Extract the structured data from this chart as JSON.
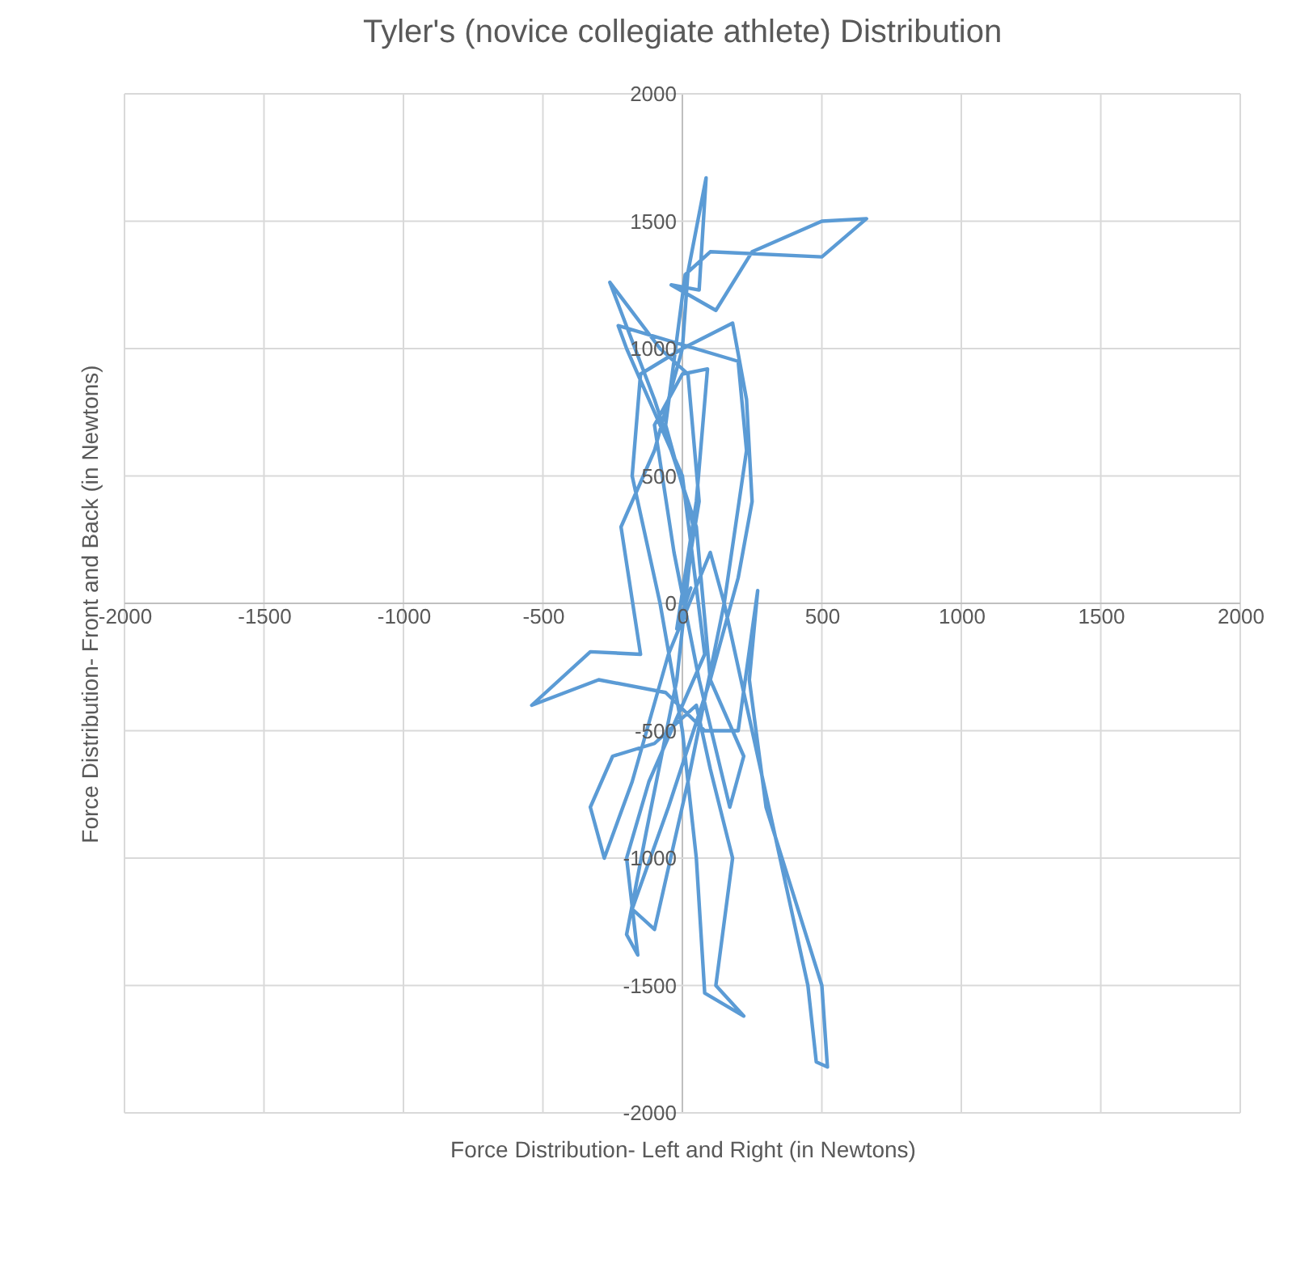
{
  "chart_data": {
    "type": "line",
    "title": "Tyler's (novice collegiate athlete) Distribution",
    "xlabel": "Force Distribution- Left and Right (in Newtons)",
    "ylabel": "Force Distribution- Front and Back (in Newtons)",
    "xlim": [
      -2000,
      2000
    ],
    "ylim": [
      -2000,
      2000
    ],
    "xticks": [
      -2000,
      -1500,
      -1000,
      -500,
      0,
      500,
      1000,
      1500,
      2000
    ],
    "yticks": [
      -2000,
      -1500,
      -1000,
      -500,
      0,
      500,
      1000,
      1500,
      2000
    ],
    "grid": true,
    "series": [
      {
        "color": "#5b9bd5",
        "x": [
          0,
          60,
          20,
          -80,
          -260,
          -100,
          50,
          100,
          -50,
          -180,
          -100,
          20,
          150,
          230,
          200,
          -230,
          -200,
          0,
          80,
          -120,
          -200,
          -160,
          -200,
          -130,
          -20,
          40,
          -60,
          10,
          100,
          500,
          660,
          500,
          250,
          120,
          -40,
          60,
          85,
          20,
          0,
          -100,
          -220,
          -150,
          -330,
          -540,
          -300,
          -60,
          80,
          200,
          270,
          240,
          300,
          500,
          520,
          480,
          450,
          150,
          100,
          -50,
          -180,
          -280,
          -330,
          -250,
          -100,
          50,
          100,
          180,
          120,
          220,
          80,
          50,
          0,
          -80,
          -180,
          -150,
          0,
          180,
          230,
          250,
          200,
          100,
          220,
          170,
          60,
          -30,
          -100,
          0,
          90,
          50,
          -20,
          30
        ],
        "values": [
          0,
          400,
          900,
          1000,
          1260,
          800,
          300,
          -300,
          -800,
          -1200,
          -1280,
          -700,
          0,
          600,
          950,
          1090,
          1000,
          500,
          -200,
          -700,
          -1000,
          -1380,
          -1300,
          -900,
          -300,
          300,
          700,
          1290,
          1380,
          1360,
          1510,
          1500,
          1380,
          1150,
          1250,
          1230,
          1670,
          1300,
          1000,
          600,
          300,
          -200,
          -190,
          -400,
          -300,
          -350,
          -500,
          -500,
          50,
          -300,
          -800,
          -1500,
          -1820,
          -1800,
          -1500,
          0,
          200,
          -200,
          -700,
          -1000,
          -800,
          -600,
          -550,
          -400,
          -650,
          -1000,
          -1500,
          -1620,
          -1530,
          -1000,
          -500,
          0,
          500,
          900,
          1000,
          1100,
          800,
          400,
          100,
          -300,
          -600,
          -800,
          -300,
          200,
          700,
          900,
          920,
          400,
          -100,
          60
        ]
      }
    ]
  }
}
